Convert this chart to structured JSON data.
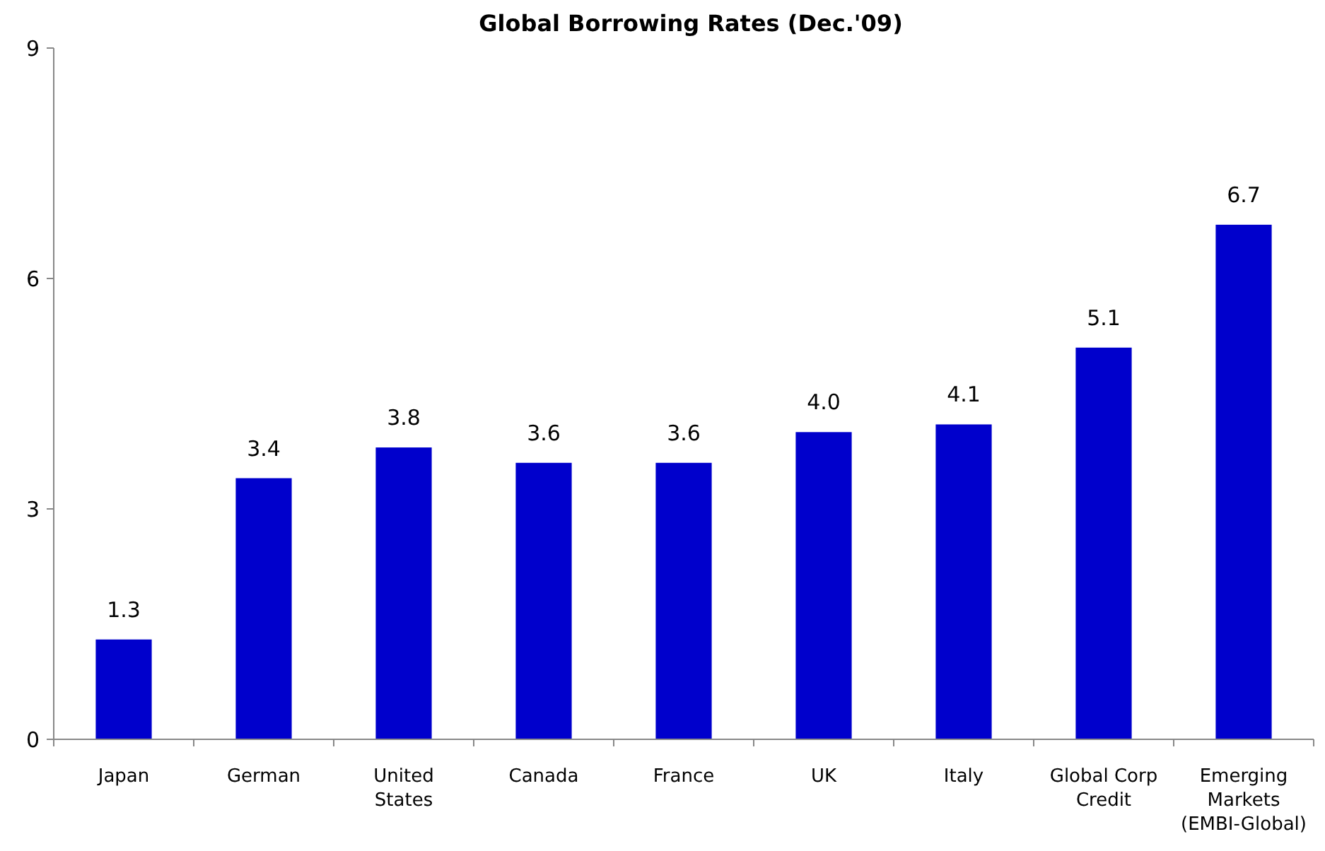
{
  "chart_data": {
    "type": "bar",
    "title": "Global Borrowing Rates  (Dec.'09)",
    "categories": [
      "Japan",
      "German",
      "United States",
      "Canada",
      "France",
      "UK",
      "Italy",
      "Global Corp Credit",
      "Emerging Markets (EMBI-Global)"
    ],
    "values": [
      1.3,
      3.4,
      3.8,
      3.6,
      3.6,
      4.0,
      4.1,
      5.1,
      6.7
    ],
    "value_labels": [
      "1.3",
      "3.4",
      "3.8",
      "3.6",
      "3.6",
      "4.0",
      "4.1",
      "5.1",
      "6.7"
    ],
    "color": "#0000cc",
    "ylim": [
      0,
      9
    ],
    "yticks": [
      0,
      3,
      6,
      9
    ],
    "grid": false
  }
}
